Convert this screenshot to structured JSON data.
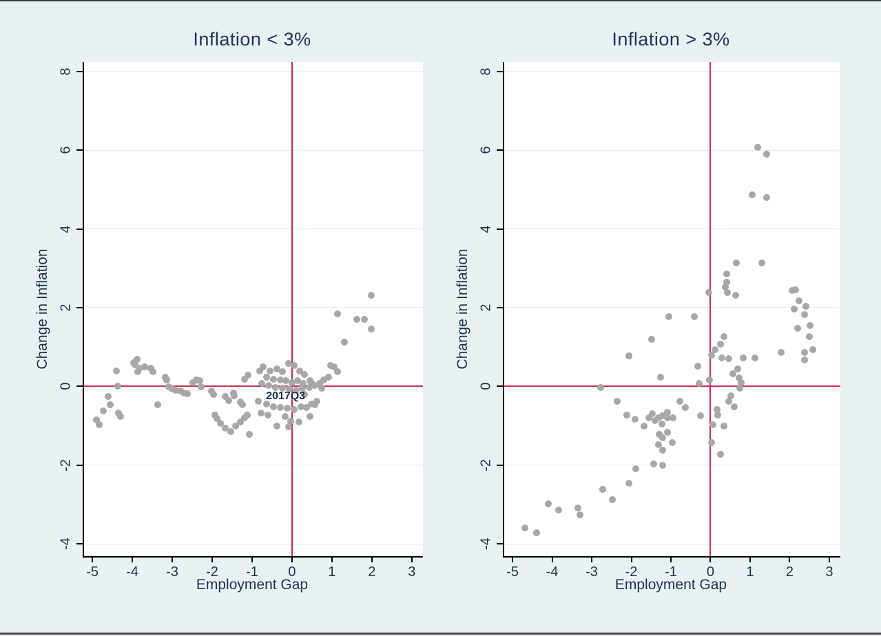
{
  "figure": {
    "background": "#eaf1f3",
    "plot_background": "#ffffff",
    "grid_color": "#e0edf1",
    "axis_color": "#000000",
    "refline_color": "#ce2b4b",
    "marker_color": "#a7a7a7",
    "text_color": "#1e3150"
  },
  "chart_data": [
    {
      "type": "scatter",
      "title": "Inflation < 3%",
      "xlabel": "Employment Gap",
      "ylabel": "Change in Inflation",
      "xlim": [
        -5.21,
        3.28
      ],
      "ylim": [
        -4.31,
        8.24
      ],
      "xticks": [
        -5,
        -4,
        -3,
        -2,
        -1,
        0,
        1,
        2,
        3
      ],
      "yticks": [
        -4,
        -2,
        0,
        2,
        4,
        6,
        8
      ],
      "refline_x": 0,
      "refline_y": 0,
      "grid": true,
      "annotation": {
        "text": "2017Q3",
        "x": -0.16,
        "y": -0.26
      },
      "points": [
        [
          -4.9,
          -0.85
        ],
        [
          -4.83,
          -0.97
        ],
        [
          -4.72,
          -0.62
        ],
        [
          -4.6,
          -0.26
        ],
        [
          -4.55,
          -0.47
        ],
        [
          -4.4,
          0.4
        ],
        [
          -4.37,
          0.01
        ],
        [
          -4.34,
          -0.68
        ],
        [
          -4.29,
          -0.77
        ],
        [
          -3.97,
          0.6
        ],
        [
          -3.94,
          0.55
        ],
        [
          -3.88,
          0.69
        ],
        [
          -3.86,
          0.37
        ],
        [
          -3.83,
          0.46
        ],
        [
          -3.69,
          0.49
        ],
        [
          -3.54,
          0.46
        ],
        [
          -3.48,
          0.37
        ],
        [
          -3.36,
          -0.47
        ],
        [
          -3.17,
          0.23
        ],
        [
          -3.14,
          0.16
        ],
        [
          -3.08,
          -0.01
        ],
        [
          -3.0,
          -0.07
        ],
        [
          -2.91,
          -0.1
        ],
        [
          -2.79,
          -0.12
        ],
        [
          -2.71,
          -0.16
        ],
        [
          -2.62,
          -0.19
        ],
        [
          -2.48,
          0.1
        ],
        [
          -2.4,
          0.16
        ],
        [
          -2.31,
          0.14
        ],
        [
          -2.28,
          -0.01
        ],
        [
          -2.02,
          -0.12
        ],
        [
          -1.97,
          -0.21
        ],
        [
          -1.93,
          -0.73
        ],
        [
          -1.88,
          -0.82
        ],
        [
          -1.79,
          -0.94
        ],
        [
          -1.67,
          -0.26
        ],
        [
          -1.67,
          -1.06
        ],
        [
          -1.59,
          -0.36
        ],
        [
          -1.53,
          -1.15
        ],
        [
          -1.47,
          -0.16
        ],
        [
          -1.45,
          -0.24
        ],
        [
          -1.41,
          -1.0
        ],
        [
          -1.3,
          -0.39
        ],
        [
          -1.3,
          -0.91
        ],
        [
          -1.24,
          -0.47
        ],
        [
          -1.19,
          0.19
        ],
        [
          -1.19,
          -0.8
        ],
        [
          -1.12,
          -0.73
        ],
        [
          -1.1,
          0.28
        ],
        [
          -1.07,
          -1.21
        ],
        [
          -0.84,
          -0.37
        ],
        [
          -0.81,
          0.4
        ],
        [
          -0.78,
          -0.68
        ],
        [
          -0.76,
          0.07
        ],
        [
          -0.72,
          0.49
        ],
        [
          -0.64,
          0.23
        ],
        [
          -0.64,
          -0.45
        ],
        [
          -0.6,
          -0.73
        ],
        [
          -0.59,
          0.02
        ],
        [
          -0.55,
          0.4
        ],
        [
          -0.47,
          0.19
        ],
        [
          -0.47,
          -0.51
        ],
        [
          -0.41,
          -0.02
        ],
        [
          -0.38,
          0.45
        ],
        [
          -0.38,
          -1.0
        ],
        [
          -0.29,
          0.16
        ],
        [
          -0.29,
          -0.54
        ],
        [
          -0.24,
          0.37
        ],
        [
          -0.24,
          -0.04
        ],
        [
          -0.17,
          -0.77
        ],
        [
          -0.16,
          0.14
        ],
        [
          -0.12,
          -0.56
        ],
        [
          -0.09,
          0.58
        ],
        [
          -0.09,
          -1.03
        ],
        [
          -0.07,
          -0.07
        ],
        [
          -0.03,
          -0.89
        ],
        [
          0.0,
          0.1
        ],
        [
          0.05,
          0.54
        ],
        [
          0.05,
          -0.59
        ],
        [
          0.1,
          -0.1
        ],
        [
          0.14,
          0.14
        ],
        [
          0.17,
          -0.91
        ],
        [
          0.19,
          0.4
        ],
        [
          0.22,
          -0.51
        ],
        [
          0.26,
          -0.04
        ],
        [
          0.28,
          0.07
        ],
        [
          0.31,
          0.31
        ],
        [
          0.31,
          -0.21
        ],
        [
          0.36,
          -0.54
        ],
        [
          0.43,
          -0.02
        ],
        [
          0.45,
          0.14
        ],
        [
          0.45,
          -0.77
        ],
        [
          0.48,
          -0.45
        ],
        [
          0.48,
          0.1
        ],
        [
          0.57,
          0.02
        ],
        [
          0.57,
          -0.47
        ],
        [
          0.62,
          -0.37
        ],
        [
          0.69,
          0.07
        ],
        [
          0.74,
          -0.04
        ],
        [
          0.79,
          0.16
        ],
        [
          0.91,
          0.24
        ],
        [
          0.97,
          0.54
        ],
        [
          1.05,
          0.49
        ],
        [
          1.14,
          0.37
        ],
        [
          1.14,
          1.85
        ],
        [
          1.31,
          1.12
        ],
        [
          1.63,
          1.71
        ],
        [
          1.81,
          1.71
        ],
        [
          1.98,
          1.45
        ],
        [
          1.98,
          2.32
        ]
      ]
    },
    {
      "type": "scatter",
      "title": "Inflation > 3%",
      "xlabel": "Employment Gap",
      "ylabel": "Change in Inflation",
      "xlim": [
        -5.21,
        3.28
      ],
      "ylim": [
        -4.31,
        8.24
      ],
      "xticks": [
        -5,
        -4,
        -3,
        -2,
        -1,
        0,
        1,
        2,
        3
      ],
      "yticks": [
        -4,
        -2,
        0,
        2,
        4,
        6,
        8
      ],
      "refline_x": 0,
      "refline_y": 0,
      "grid": true,
      "annotation": null,
      "points": [
        [
          1.19,
          6.08
        ],
        [
          1.42,
          5.9
        ],
        [
          1.06,
          4.87
        ],
        [
          1.42,
          4.79
        ],
        [
          0.66,
          3.13
        ],
        [
          1.29,
          3.13
        ],
        [
          0.41,
          2.85
        ],
        [
          0.41,
          2.64
        ],
        [
          0.37,
          2.53
        ],
        [
          -0.05,
          2.39
        ],
        [
          0.43,
          2.39
        ],
        [
          0.64,
          2.31
        ],
        [
          2.06,
          2.43
        ],
        [
          2.15,
          2.45
        ],
        [
          2.23,
          2.18
        ],
        [
          2.41,
          2.04
        ],
        [
          2.11,
          1.96
        ],
        [
          2.38,
          1.83
        ],
        [
          2.52,
          1.55
        ],
        [
          2.2,
          1.47
        ],
        [
          2.5,
          1.26
        ],
        [
          2.59,
          0.94
        ],
        [
          2.38,
          0.86
        ],
        [
          2.38,
          0.68
        ],
        [
          1.79,
          0.86
        ],
        [
          -2.06,
          0.77
        ],
        [
          -1.49,
          1.19
        ],
        [
          -1.05,
          1.78
        ],
        [
          -0.41,
          1.78
        ],
        [
          0.34,
          1.26
        ],
        [
          0.25,
          1.08
        ],
        [
          0.11,
          0.94
        ],
        [
          0.02,
          0.79
        ],
        [
          0.28,
          0.73
        ],
        [
          0.46,
          0.7
        ],
        [
          0.82,
          0.73
        ],
        [
          1.13,
          0.73
        ],
        [
          -0.32,
          0.51
        ],
        [
          0.69,
          0.44
        ],
        [
          0.57,
          0.33
        ],
        [
          0.73,
          0.21
        ],
        [
          -0.02,
          0.16
        ],
        [
          -0.28,
          0.07
        ],
        [
          0.78,
          0.09
        ],
        [
          -1.26,
          0.24
        ],
        [
          -2.77,
          -0.02
        ],
        [
          0.74,
          -0.05
        ],
        [
          0.51,
          -0.23
        ],
        [
          0.46,
          -0.37
        ],
        [
          0.6,
          -0.52
        ],
        [
          0.16,
          -0.58
        ],
        [
          0.19,
          -0.72
        ],
        [
          -0.25,
          -0.75
        ],
        [
          0.07,
          -0.98
        ],
        [
          0.34,
          -1.01
        ],
        [
          0.02,
          -1.42
        ],
        [
          0.25,
          -1.72
        ],
        [
          -0.78,
          -0.37
        ],
        [
          -0.64,
          -0.54
        ],
        [
          -1.08,
          -0.66
        ],
        [
          -0.94,
          -0.8
        ],
        [
          -2.36,
          -0.37
        ],
        [
          -2.11,
          -0.72
        ],
        [
          -1.91,
          -0.84
        ],
        [
          -1.67,
          -1.01
        ],
        [
          -1.56,
          -0.79
        ],
        [
          -1.47,
          -0.7
        ],
        [
          -1.4,
          -0.87
        ],
        [
          -1.31,
          -0.8
        ],
        [
          -1.22,
          -0.96
        ],
        [
          -1.2,
          -0.75
        ],
        [
          -1.08,
          -0.79
        ],
        [
          -1.29,
          -1.22
        ],
        [
          -1.2,
          -1.31
        ],
        [
          -1.08,
          -1.17
        ],
        [
          -1.31,
          -1.48
        ],
        [
          -1.2,
          -1.61
        ],
        [
          -0.96,
          -1.43
        ],
        [
          -1.43,
          -1.97
        ],
        [
          -1.2,
          -2.01
        ],
        [
          -1.88,
          -2.09
        ],
        [
          -2.06,
          -2.46
        ],
        [
          -2.73,
          -2.61
        ],
        [
          -2.48,
          -2.87
        ],
        [
          -4.1,
          -2.99
        ],
        [
          -3.35,
          -3.08
        ],
        [
          -3.83,
          -3.14
        ],
        [
          -3.3,
          -3.26
        ],
        [
          -4.68,
          -3.6
        ],
        [
          -4.4,
          -3.72
        ]
      ]
    }
  ]
}
